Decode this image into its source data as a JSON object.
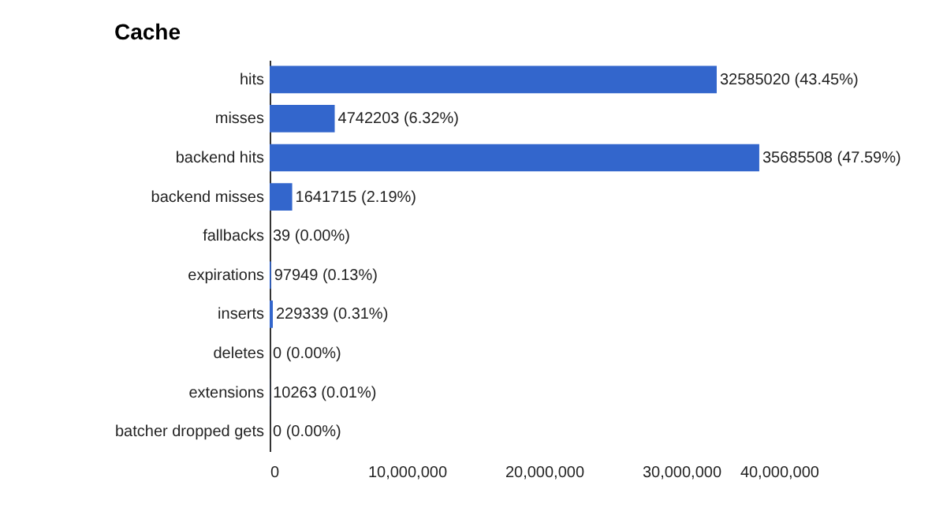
{
  "chart_data": {
    "type": "bar",
    "title": "Cache",
    "orientation": "horizontal",
    "categories": [
      "hits",
      "misses",
      "backend hits",
      "backend misses",
      "fallbacks",
      "expirations",
      "inserts",
      "deletes",
      "extensions",
      "batcher dropped gets"
    ],
    "values": [
      32585020,
      4742203,
      35685508,
      1641715,
      39,
      97949,
      229339,
      0,
      10263,
      0
    ],
    "value_labels": [
      "32585020 (43.45%)",
      "4742203 (6.32%)",
      "35685508 (47.59%)",
      "1641715 (2.19%)",
      "39 (0.00%)",
      "97949 (0.13%)",
      "229339 (0.31%)",
      "0 (0.00%)",
      "10263 (0.01%)",
      "0 (0.00%)"
    ],
    "color": "#3366cc",
    "xlim": [
      0,
      40000000
    ],
    "xticks": [
      0,
      {
        "value": 10000000,
        "label": "10,000,000"
      },
      {
        "value": 20000000,
        "label": "20,000,000"
      },
      {
        "value": 30000000,
        "label": "30,000,000"
      },
      {
        "value": 40000000,
        "label": "40,000,000"
      }
    ],
    "grid": false
  }
}
